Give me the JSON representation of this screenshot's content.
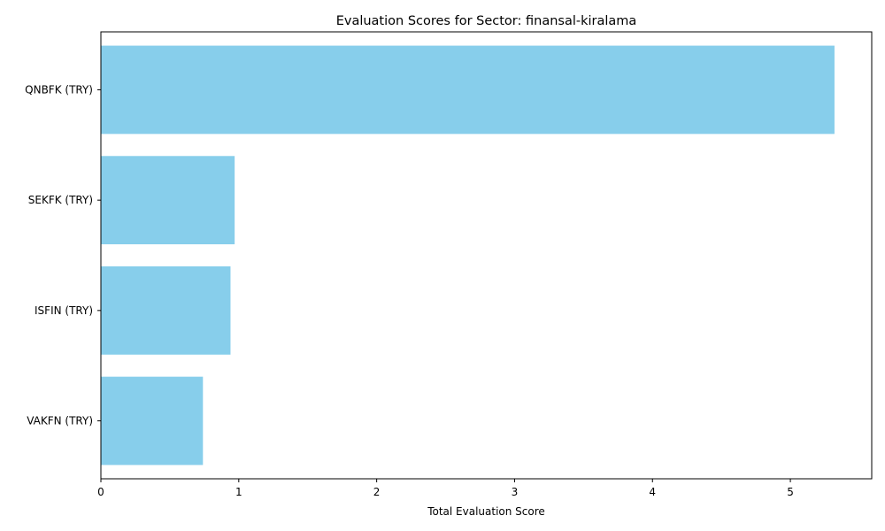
{
  "chart_data": {
    "type": "bar",
    "orientation": "horizontal",
    "title": "Evaluation Scores for Sector: finansal-kiralama",
    "xlabel": "Total Evaluation Score",
    "ylabel": "",
    "categories": [
      "QNBFK (TRY)",
      "SEKFK (TRY)",
      "ISFIN (TRY)",
      "VAKFN (TRY)"
    ],
    "values": [
      5.32,
      0.97,
      0.94,
      0.74
    ],
    "xlim": [
      0,
      5.59
    ],
    "xticks": [
      0,
      1,
      2,
      3,
      4,
      5
    ],
    "bar_color": "#87ceeb",
    "grid": false,
    "legend": "none"
  }
}
